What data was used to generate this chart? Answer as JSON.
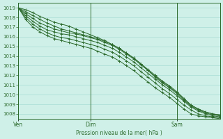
{
  "bg_color": "#cff0e8",
  "grid_color": "#a8ddd5",
  "line_color": "#2d6b2d",
  "xlabel_text": "Pression niveau de la mer( hPa )",
  "xtick_labels": [
    "Ven",
    "Dim",
    "Sam"
  ],
  "xtick_positions": [
    0,
    10,
    22
  ],
  "ylim": [
    1007.5,
    1019.5
  ],
  "xlim": [
    0,
    28
  ],
  "yticks": [
    1008,
    1009,
    1010,
    1011,
    1012,
    1013,
    1014,
    1015,
    1016,
    1017,
    1018,
    1019
  ],
  "total_points": 29,
  "series": [
    [
      1019.0,
      1018.8,
      1018.5,
      1018.1,
      1017.8,
      1017.5,
      1017.3,
      1017.1,
      1016.8,
      1016.5,
      1016.2,
      1015.9,
      1015.6,
      1015.2,
      1014.8,
      1014.3,
      1013.8,
      1013.2,
      1012.6,
      1012.0,
      1011.4,
      1010.9,
      1010.3,
      1009.6,
      1008.9,
      1008.5,
      1008.2,
      1008.0,
      1007.9
    ],
    [
      1019.0,
      1018.6,
      1018.2,
      1017.8,
      1017.4,
      1017.1,
      1016.8,
      1016.6,
      1016.4,
      1016.2,
      1016.0,
      1015.8,
      1015.5,
      1015.2,
      1014.8,
      1014.3,
      1013.8,
      1013.2,
      1012.5,
      1011.9,
      1011.3,
      1010.8,
      1010.2,
      1009.5,
      1008.9,
      1008.5,
      1008.2,
      1008.0,
      1007.9
    ],
    [
      1019.0,
      1018.4,
      1017.9,
      1017.4,
      1017.1,
      1016.8,
      1016.6,
      1016.4,
      1016.3,
      1016.1,
      1015.9,
      1015.7,
      1015.4,
      1015.1,
      1014.7,
      1014.2,
      1013.7,
      1013.1,
      1012.5,
      1011.8,
      1011.2,
      1010.7,
      1010.1,
      1009.4,
      1008.8,
      1008.4,
      1008.1,
      1007.9,
      1007.8
    ],
    [
      1019.0,
      1018.2,
      1017.6,
      1017.1,
      1016.7,
      1016.5,
      1016.3,
      1016.2,
      1016.0,
      1015.8,
      1015.6,
      1015.4,
      1015.1,
      1014.8,
      1014.4,
      1013.9,
      1013.4,
      1012.8,
      1012.2,
      1011.6,
      1011.0,
      1010.5,
      1009.9,
      1009.3,
      1008.7,
      1008.3,
      1008.0,
      1007.8,
      1007.7
    ],
    [
      1019.0,
      1018.0,
      1017.3,
      1016.8,
      1016.4,
      1016.1,
      1015.9,
      1015.8,
      1015.6,
      1015.4,
      1015.2,
      1015.0,
      1014.7,
      1014.4,
      1014.0,
      1013.5,
      1013.0,
      1012.4,
      1011.8,
      1011.2,
      1010.6,
      1010.1,
      1009.5,
      1008.9,
      1008.4,
      1008.0,
      1007.8,
      1007.7,
      1007.6
    ],
    [
      1019.0,
      1017.8,
      1017.0,
      1016.5,
      1016.1,
      1015.8,
      1015.6,
      1015.4,
      1015.2,
      1015.0,
      1014.8,
      1014.5,
      1014.2,
      1013.9,
      1013.5,
      1013.0,
      1012.5,
      1011.9,
      1011.3,
      1010.7,
      1010.2,
      1009.7,
      1009.1,
      1008.5,
      1008.0,
      1007.8,
      1007.7,
      1007.6,
      1007.5
    ]
  ]
}
